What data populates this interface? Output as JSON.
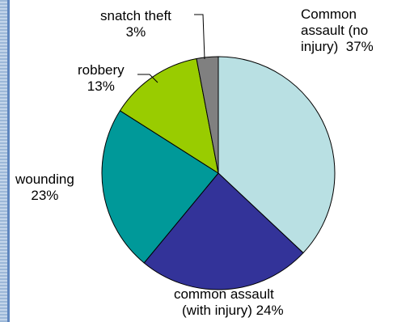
{
  "chart_data": {
    "type": "pie",
    "slices": [
      {
        "label_line1": "Common",
        "label_line2": "assault (no",
        "label_line3": "injury)",
        "pct": "37%",
        "value": 37,
        "color": "#b9e0e3"
      },
      {
        "label_line1": "common assault",
        "label_line2": "(with injury)",
        "pct": "24%",
        "value": 24,
        "color": "#333399"
      },
      {
        "label_line1": "wounding",
        "pct": "23%",
        "value": 23,
        "color": "#009999"
      },
      {
        "label_line1": "robbery",
        "pct": "13%",
        "value": 13,
        "color": "#99cc00"
      },
      {
        "label_line1": "snatch theft",
        "pct": "3%",
        "value": 3,
        "color": "#808080"
      }
    ]
  }
}
